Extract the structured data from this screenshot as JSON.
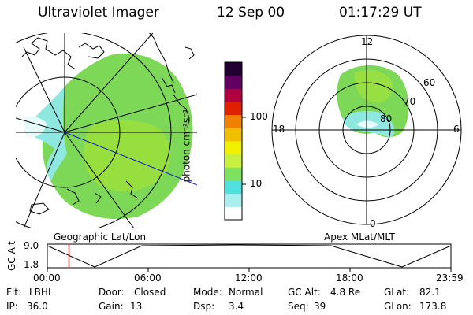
{
  "header": {
    "instrument": "Ultraviolet Imager",
    "date": "12 Sep 00",
    "time": "01:17:29 UT"
  },
  "geo_panel": {
    "caption": "Geographic Lat/Lon"
  },
  "apex_panel": {
    "caption": "Apex MLat/MLT",
    "mlt_labels": [
      "12",
      "18",
      "6",
      "0"
    ],
    "mlat_labels": [
      "60",
      "70",
      "80"
    ]
  },
  "colorbar": {
    "unit_label": "photon cm⁻²s⁻¹",
    "ticks": [
      "100",
      "10"
    ],
    "scale": "log",
    "colors": [
      "#ffffff",
      "#a8f0f0",
      "#50e0e0",
      "#80e060",
      "#c8f040",
      "#f0f000",
      "#f0c000",
      "#f08000",
      "#e02000",
      "#b00040",
      "#600060",
      "#200030"
    ]
  },
  "altitude_plot": {
    "ylabel": "GC Alt",
    "yticks": [
      "9.0",
      "1.8"
    ],
    "xticks": [
      "00:00",
      "06:00",
      "12:00",
      "18:00",
      "23:59"
    ],
    "current_time_hours": 1.29,
    "marker_color": "#e00000"
  },
  "info": {
    "flt_label": "Flt:",
    "flt_value": "LBHL",
    "door_label": "Door:",
    "door_value": "Closed",
    "mode_label": "Mode:",
    "mode_value": "Normal",
    "gcalt_label": "GC Alt:",
    "gcalt_value": "4.8 Re",
    "glat_label": "GLat:",
    "glat_value": "82.1",
    "ip_label": "IP:",
    "ip_value": "36.0",
    "gain_label": "Gain:",
    "gain_value": "13",
    "dsp_label": "Dsp:",
    "dsp_value": "3.4",
    "seq_label": "Seq:",
    "seq_value": "39",
    "glon_label": "GLon:",
    "glon_value": "173.8"
  }
}
